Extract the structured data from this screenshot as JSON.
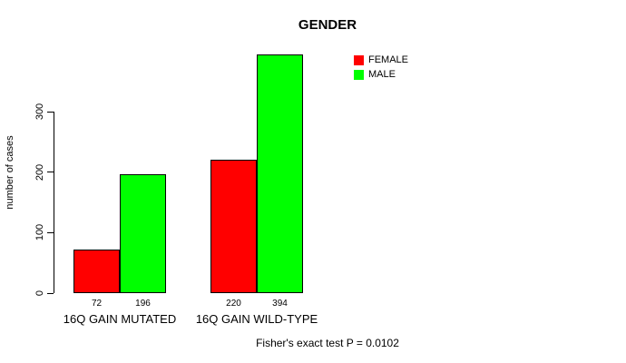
{
  "chart_data": {
    "type": "bar",
    "title": "GENDER",
    "xlabel": "",
    "ylabel": "number of cases",
    "ylim": [
      0,
      300
    ],
    "yticks": [
      0,
      100,
      200,
      300
    ],
    "grid": false,
    "legend_position": "top-right",
    "categories": [
      "16Q GAIN MUTATED",
      "16Q GAIN WILD-TYPE"
    ],
    "series": [
      {
        "name": "FEMALE",
        "color": "#ff0000",
        "values": [
          72,
          220
        ]
      },
      {
        "name": "MALE",
        "color": "#00ff00",
        "values": [
          196,
          394
        ]
      }
    ],
    "bar_value_labels": [
      [
        "72",
        "196"
      ],
      [
        "220",
        "394"
      ]
    ],
    "annotation": "Fisher's exact test P = 0.0102",
    "axis_color": "#000000",
    "bar_border_color": "#000000"
  }
}
